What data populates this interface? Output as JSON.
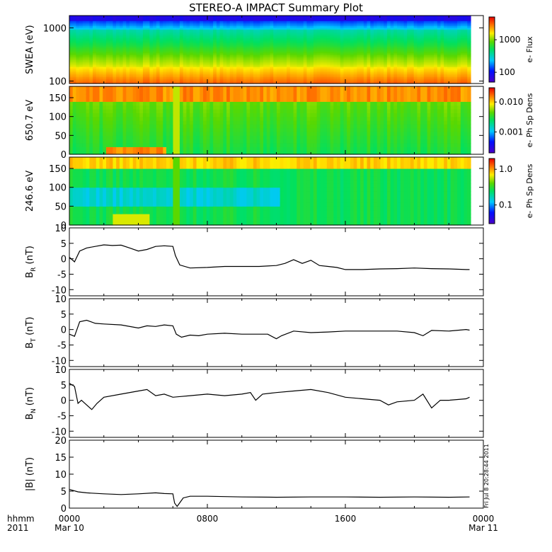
{
  "title": "STEREO-A IMPACT Summary Plot",
  "footer": {
    "time_label": "hhmm",
    "year_label": "2011",
    "ticks": [
      "0000",
      "0800",
      "1600",
      "0000"
    ],
    "dates": [
      "Mar 10",
      "",
      "",
      "Mar 11"
    ],
    "stamp": "Fri Jul 8 20:28:44 2011"
  },
  "colors": {
    "axis": "#000000",
    "line": "#000000",
    "missing": "#ffffff"
  },
  "chart_data": [
    {
      "type": "heatmap",
      "id": "swea",
      "ylabel": "SWEA (eV)",
      "yscale": "log",
      "ylim": [
        90,
        1700
      ],
      "yticks": [
        100,
        1000
      ],
      "ytick_labels": [
        "100",
        "1000"
      ],
      "colorbar": {
        "label": "e- Flux",
        "scale": "log",
        "range": [
          50,
          5000
        ],
        "ticks": [
          100,
          1000
        ],
        "tick_labels": [
          "100",
          "1000"
        ]
      },
      "description_rows": [
        {
          "energy_eV": 1500,
          "level": 0.02
        },
        {
          "energy_eV": 1000,
          "level": 0.25
        },
        {
          "energy_eV": 700,
          "level": 0.42
        },
        {
          "energy_eV": 400,
          "level": 0.6
        },
        {
          "energy_eV": 250,
          "level": 0.72
        },
        {
          "energy_eV": 150,
          "level": 0.88
        },
        {
          "energy_eV": 100,
          "level": 0.82
        }
      ]
    },
    {
      "type": "heatmap",
      "id": "pad650",
      "ylabel": "650.7 eV",
      "ylim": [
        0,
        180
      ],
      "yticks": [
        0,
        50,
        100,
        150
      ],
      "ytick_labels": [
        "0",
        "50",
        "100",
        "150"
      ],
      "colorbar": {
        "label": "e- Ph Sp Dens",
        "scale": "log",
        "range": [
          0.0002,
          0.03
        ],
        "ticks": [
          0.001,
          0.01
        ],
        "tick_labels": [
          "0.001",
          "0.010"
        ]
      }
    },
    {
      "type": "heatmap",
      "id": "pad246",
      "ylabel": "246.6 eV",
      "ylim": [
        0,
        180
      ],
      "yticks": [
        0,
        50,
        100,
        150
      ],
      "ytick_labels": [
        "0",
        "50",
        "100",
        "150"
      ],
      "colorbar": {
        "label": "e- Ph Sp Dens",
        "scale": "log",
        "range": [
          0.03,
          2.0
        ],
        "ticks": [
          0.1,
          1.0
        ],
        "tick_labels": [
          "0.1",
          "1.0"
        ]
      }
    },
    {
      "type": "line",
      "id": "br",
      "ylabel": "B",
      "ylabel_sub": "R",
      "ylabel_unit": "(nT)",
      "ylim": [
        -12,
        10
      ],
      "yticks": [
        -10,
        -5,
        0,
        5,
        10
      ],
      "ytick_labels": [
        "-10",
        "-5",
        "0",
        "5",
        "10"
      ],
      "x_hours": [
        0,
        0.3,
        0.6,
        1,
        1.5,
        2,
        2.5,
        3,
        3.5,
        4,
        4.5,
        5,
        5.5,
        6,
        6.15,
        6.4,
        7,
        8,
        9,
        10,
        11,
        12,
        12.5,
        13,
        13.5,
        14,
        14.5,
        15,
        15.5,
        16,
        17,
        18,
        19,
        20,
        21,
        22,
        23,
        23.2
      ],
      "y": [
        0.5,
        -1,
        2.5,
        3.5,
        4,
        4.5,
        4.3,
        4.4,
        3.5,
        2.5,
        3,
        4,
        4.2,
        4,
        1,
        -2,
        -3,
        -2.8,
        -2.5,
        -2.5,
        -2.5,
        -2.2,
        -1.5,
        -0.3,
        -1.5,
        -0.5,
        -2.2,
        -2.5,
        -2.8,
        -3.5,
        -3.5,
        -3.3,
        -3.2,
        -3,
        -3.2,
        -3.3,
        -3.5,
        -3.5
      ]
    },
    {
      "type": "line",
      "id": "bt",
      "ylabel": "B",
      "ylabel_sub": "T",
      "ylabel_unit": "(nT)",
      "ylim": [
        -12,
        10
      ],
      "yticks": [
        -10,
        -5,
        0,
        5,
        10
      ],
      "ytick_labels": [
        "-10",
        "-5",
        "0",
        "5",
        "10"
      ],
      "x_hours": [
        0,
        0.3,
        0.6,
        1,
        1.5,
        2,
        3,
        4,
        4.5,
        5,
        5.5,
        6,
        6.2,
        6.5,
        7,
        7.5,
        8,
        9,
        10,
        11,
        11.5,
        12,
        12.3,
        13,
        14,
        15,
        16,
        17,
        18,
        19,
        20,
        20.5,
        21,
        22,
        23,
        23.2
      ],
      "y": [
        -1.5,
        -2.2,
        2.5,
        3,
        2,
        1.8,
        1.5,
        0.5,
        1.2,
        1,
        1.5,
        1.2,
        -1.5,
        -2.5,
        -1.8,
        -2,
        -1.5,
        -1.2,
        -1.5,
        -1.5,
        -1.5,
        -3,
        -2,
        -0.5,
        -1,
        -0.8,
        -0.5,
        -0.5,
        -0.5,
        -0.5,
        -1,
        -2,
        -0.3,
        -0.5,
        0,
        -0.2
      ]
    },
    {
      "type": "line",
      "id": "bn",
      "ylabel": "B",
      "ylabel_sub": "N",
      "ylabel_unit": "(nT)",
      "ylim": [
        -12,
        10
      ],
      "yticks": [
        -10,
        -5,
        0,
        5,
        10
      ],
      "ytick_labels": [
        "-10",
        "-5",
        "0",
        "5",
        "10"
      ],
      "x_hours": [
        0,
        0.3,
        0.5,
        0.7,
        1,
        1.3,
        1.6,
        2,
        3,
        4,
        4.5,
        5,
        5.5,
        6,
        7,
        8,
        9,
        10,
        10.5,
        10.8,
        11.2,
        12,
        13,
        14,
        15,
        16,
        17,
        18,
        18.5,
        19,
        20,
        20.5,
        21,
        21.5,
        22,
        23,
        23.2
      ],
      "y": [
        5.5,
        4.5,
        -1,
        0,
        -1.5,
        -3,
        -1,
        1,
        2,
        3,
        3.5,
        1.5,
        2,
        1,
        1.5,
        2,
        1.5,
        2,
        2.5,
        0,
        2,
        2.5,
        3,
        3.5,
        2.5,
        1,
        0.5,
        0,
        -1.5,
        -0.5,
        0,
        2,
        -2.5,
        0,
        0,
        0.5,
        1
      ]
    },
    {
      "type": "line",
      "id": "bmag",
      "ylabel": "|B| (nT)",
      "ylim": [
        0,
        20
      ],
      "yticks": [
        0,
        5,
        10,
        15,
        20
      ],
      "ytick_labels": [
        "0",
        "5",
        "10",
        "15",
        "20"
      ],
      "x_hours": [
        0,
        0.5,
        1,
        2,
        3,
        4,
        5,
        5.5,
        6,
        6.1,
        6.25,
        6.6,
        7,
        8,
        10,
        12,
        14,
        16,
        18,
        20,
        22,
        23.2
      ],
      "y": [
        5.5,
        4.8,
        4.5,
        4.2,
        4,
        4.2,
        4.5,
        4.3,
        4.2,
        1.5,
        0.5,
        3,
        3.5,
        3.5,
        3.3,
        3.2,
        3.3,
        3.3,
        3.2,
        3.3,
        3.2,
        3.3
      ]
    }
  ]
}
